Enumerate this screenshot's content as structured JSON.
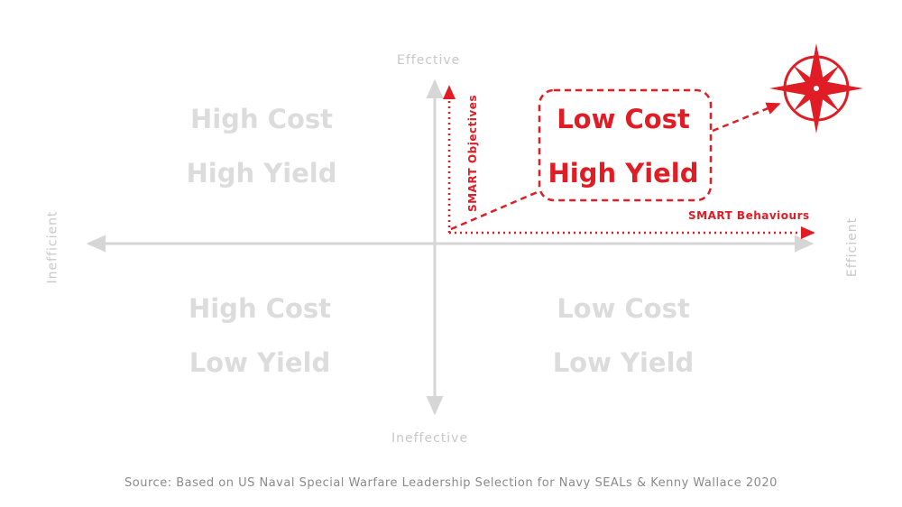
{
  "axes": {
    "top": "Effective",
    "bottom": "Ineffective",
    "left": "Inefficient",
    "right": "Efficient"
  },
  "quadrants": {
    "top_left": {
      "line1": "High Cost",
      "line2": "High Yield"
    },
    "top_right": {
      "line1": "Low Cost",
      "line2": "High Yield"
    },
    "bottom_left": {
      "line1": "High Cost",
      "line2": "Low Yield"
    },
    "bottom_right": {
      "line1": "Low Cost",
      "line2": "Low Yield"
    }
  },
  "annotations": {
    "vertical": "SMART Objectives",
    "horizontal": "SMART Behaviours"
  },
  "source": "Source: Based on US Naval Special Warfare Leadership Selection for Navy SEALs & Kenny Wallace 2020",
  "colors": {
    "accent": "#e01c24",
    "axis": "#d6d6d6",
    "muted_text": "#dcdcdc"
  },
  "icons": {
    "compass": "compass-rose-icon"
  }
}
